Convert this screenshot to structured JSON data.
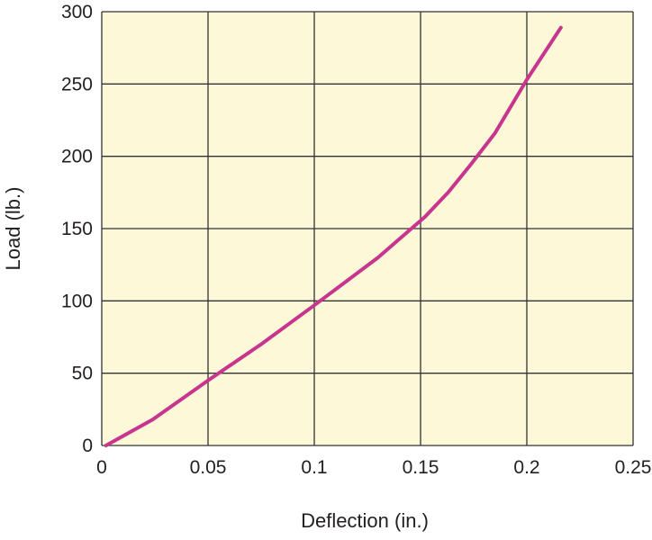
{
  "chart_data": {
    "type": "line",
    "title": "",
    "xlabel": "Deflection (in.)",
    "ylabel": "Load (lb.)",
    "xlim": [
      0,
      0.25
    ],
    "ylim": [
      0,
      300
    ],
    "x_ticks": [
      0,
      0.05,
      0.1,
      0.15,
      0.2,
      0.25
    ],
    "x_tick_labels": [
      "0",
      "0.05",
      "0.1",
      "0.15",
      "0.2",
      "0.25"
    ],
    "y_ticks": [
      0,
      50,
      100,
      150,
      200,
      250,
      300
    ],
    "y_tick_labels": [
      "0",
      "50",
      "100",
      "150",
      "200",
      "250",
      "300"
    ],
    "grid": true,
    "plot_background": "#fdf8d8",
    "grid_color": "#333333",
    "series": [
      {
        "color": "#c8358e",
        "x": [
          0.002,
          0.024,
          0.05,
          0.075,
          0.1,
          0.13,
          0.152,
          0.163,
          0.174,
          0.185,
          0.2,
          0.216
        ],
        "y": [
          0,
          18,
          45,
          70,
          97,
          130,
          158,
          175,
          195,
          216,
          253,
          289
        ]
      }
    ]
  }
}
